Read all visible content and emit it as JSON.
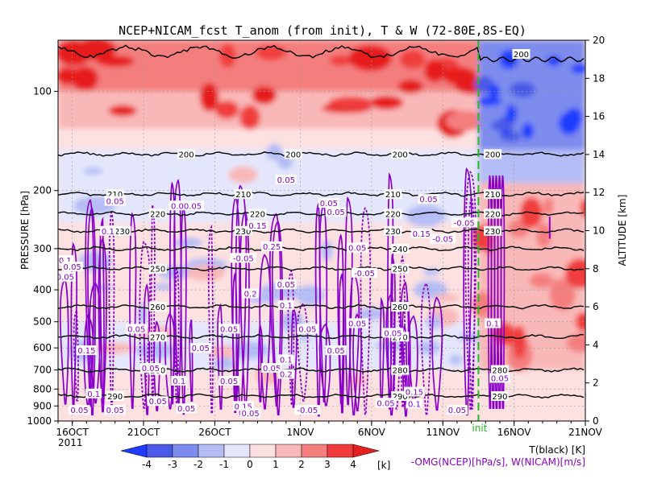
{
  "chart_data": {
    "type": "heatmap",
    "title": "NCEP+NICAM_fcst T_anom (from init), T & W  (72-80E,8S-EQ)",
    "ylabel_left": "PRESSURE [hPa]",
    "ylabel_right": "ALTITUDE [km]",
    "x_ticks": [
      "16OCT",
      "21OCT",
      "26OCT",
      "1NOV",
      "6NOV",
      "11NOV",
      "16NOV",
      "21NOV"
    ],
    "x_year": "2011",
    "x_range": [
      "2011-10-15",
      "2011-11-21"
    ],
    "init_date": "2011-11-13.5",
    "init_label": "init",
    "pressure_ticks": [
      100,
      200,
      300,
      400,
      500,
      600,
      700,
      800,
      900,
      1000
    ],
    "pressure_range": [
      1000,
      70
    ],
    "altitude_ticks": [
      0,
      2,
      4,
      6,
      8,
      10,
      12,
      14,
      16,
      18,
      20
    ],
    "altitude_range": [
      0,
      20
    ],
    "colorbar": {
      "levels": [
        -4,
        -3,
        -2,
        -1,
        0,
        1,
        2,
        3,
        4
      ],
      "colors": [
        "#1e3cff",
        "#4a5ae6",
        "#7d8ced",
        "#b4bdf5",
        "#e4e7fb",
        "#fde1e1",
        "#f9b8b8",
        "#f47e7e",
        "#f03c3c",
        "#e61e1e"
      ],
      "unit": "[k]"
    },
    "legend_t": "T(black) [K]",
    "legend_w": "-OMG(NCEP)[hPa/s], W(NICAM)[m/s]",
    "isotherms": [
      {
        "label": "200",
        "pressure": 155,
        "labels_at": [
          "2011-10-24",
          "2011-10-31.5",
          "2011-11-08",
          "2011-11-14.5"
        ]
      },
      {
        "label": "210",
        "pressure": 205,
        "labels_at": [
          "2011-10-19",
          "2011-10-28",
          "2011-11-07.5",
          "2011-11-14.5"
        ]
      },
      {
        "label": "220",
        "pressure": 235,
        "labels_at": [
          "2011-10-22",
          "2011-10-29",
          "2011-11-07.5",
          "2011-11-14.5"
        ]
      },
      {
        "label": "230",
        "pressure": 265,
        "labels_at": [
          "2011-10-19.5",
          "2011-10-28",
          "2011-11-07.5",
          "2011-11-14.5"
        ]
      },
      {
        "label": "240",
        "pressure": 300,
        "labels_at": [
          "2011-11-08"
        ]
      },
      {
        "label": "250",
        "pressure": 345,
        "labels_at": [
          "2011-10-22",
          "2011-11-08"
        ]
      },
      {
        "label": "260",
        "pressure": 450,
        "labels_at": [
          "2011-10-22",
          "2011-11-08"
        ]
      },
      {
        "label": "270",
        "pressure": 555,
        "labels_at": [
          "2011-10-22",
          "2011-11-08"
        ]
      },
      {
        "label": "280",
        "pressure": 700,
        "labels_at": [
          "2011-10-22",
          "2011-11-08",
          "2011-11-15"
        ]
      },
      {
        "label": "290",
        "pressure": 840,
        "labels_at": [
          "2011-10-19",
          "2011-11-08",
          "2011-11-15"
        ]
      }
    ],
    "w_labels": [
      {
        "text": "0.05",
        "date": "2011-10-31",
        "pressure": 185
      },
      {
        "text": "0.05",
        "date": "2011-10-19",
        "pressure": 215
      },
      {
        "text": "0.00.05",
        "date": "2011-10-24",
        "pressure": 222
      },
      {
        "text": "0.05",
        "date": "2011-11-03",
        "pressure": 218
      },
      {
        "text": "0.05",
        "date": "2011-11-03.5",
        "pressure": 232
      },
      {
        "text": "0.05",
        "date": "2011-11-10",
        "pressure": 212
      },
      {
        "text": "-0.05",
        "date": "2011-11-12.5",
        "pressure": 250
      },
      {
        "text": "0.1",
        "date": "2011-10-18.5",
        "pressure": 265
      },
      {
        "text": "0.15",
        "date": "2011-10-29",
        "pressure": 255
      },
      {
        "text": "0.15",
        "date": "2011-11-09.5",
        "pressure": 270
      },
      {
        "text": "-0.05",
        "date": "2011-11-11",
        "pressure": 280
      },
      {
        "text": "0.05",
        "date": "2011-11-05",
        "pressure": 298
      },
      {
        "text": "0.25",
        "date": "2011-10-30",
        "pressure": 295
      },
      {
        "text": "-0.05",
        "date": "2011-10-28",
        "pressure": 320
      },
      {
        "text": "0.1",
        "date": "2011-10-15.5",
        "pressure": 325
      },
      {
        "text": "0.05",
        "date": "2011-10-16",
        "pressure": 340
      },
      {
        "text": "-0.05",
        "date": "2011-11-05.5",
        "pressure": 355
      },
      {
        "text": "0.05",
        "date": "2011-10-15.5",
        "pressure": 365
      },
      {
        "text": "0.05",
        "date": "2011-10-31",
        "pressure": 385
      },
      {
        "text": "0.2",
        "date": "2011-10-28.5",
        "pressure": 410
      },
      {
        "text": "0.1",
        "date": "2011-10-31",
        "pressure": 445
      },
      {
        "text": "0.05",
        "date": "2011-10-20.5",
        "pressure": 525
      },
      {
        "text": "0.05",
        "date": "2011-11-01.5",
        "pressure": 525
      },
      {
        "text": "0.05",
        "date": "2011-11-05",
        "pressure": 505
      },
      {
        "text": "0.05",
        "date": "2011-11-07.5",
        "pressure": 540
      },
      {
        "text": "0.05",
        "date": "2011-10-27",
        "pressure": 525
      },
      {
        "text": "0.1",
        "date": "2011-11-14.5",
        "pressure": 505
      },
      {
        "text": "0.15",
        "date": "2011-10-17",
        "pressure": 610
      },
      {
        "text": "0.05",
        "date": "2011-10-25",
        "pressure": 600
      },
      {
        "text": "0.05",
        "date": "2011-11-03.5",
        "pressure": 610
      },
      {
        "text": "0.05",
        "date": "2011-10-21.5",
        "pressure": 690
      },
      {
        "text": "0.05",
        "date": "2011-10-30",
        "pressure": 690
      },
      {
        "text": "0.1",
        "date": "2011-10-31",
        "pressure": 650
      },
      {
        "text": "0.2",
        "date": "2011-10-31",
        "pressure": 720
      },
      {
        "text": "0.05",
        "date": "2011-11-15",
        "pressure": 740
      },
      {
        "text": "0.1",
        "date": "2011-10-23.5",
        "pressure": 755
      },
      {
        "text": "0.05",
        "date": "2011-10-27",
        "pressure": 755
      },
      {
        "text": "0.1",
        "date": "2011-10-17.5",
        "pressure": 825
      },
      {
        "text": "0.15",
        "date": "2011-11-09",
        "pressure": 815
      },
      {
        "text": "0.05",
        "date": "2011-10-22",
        "pressure": 870
      },
      {
        "text": "0.05",
        "date": "2011-11-07",
        "pressure": 880
      },
      {
        "text": "0.1",
        "date": "2011-11-09",
        "pressure": 885
      },
      {
        "text": "0.15",
        "date": "2011-10-28",
        "pressure": 900
      },
      {
        "text": "0.05",
        "date": "2011-10-16.5",
        "pressure": 925
      },
      {
        "text": "0.05",
        "date": "2011-10-19",
        "pressure": 925
      },
      {
        "text": "0.05",
        "date": "2011-10-24",
        "pressure": 915
      },
      {
        "text": "-0.05",
        "date": "2011-11-01.5",
        "pressure": 925
      },
      {
        "text": "0.05",
        "date": "2011-11-12",
        "pressure": 925
      },
      {
        "text": "0.05",
        "date": "2011-10-28.5",
        "pressure": 945
      }
    ]
  }
}
